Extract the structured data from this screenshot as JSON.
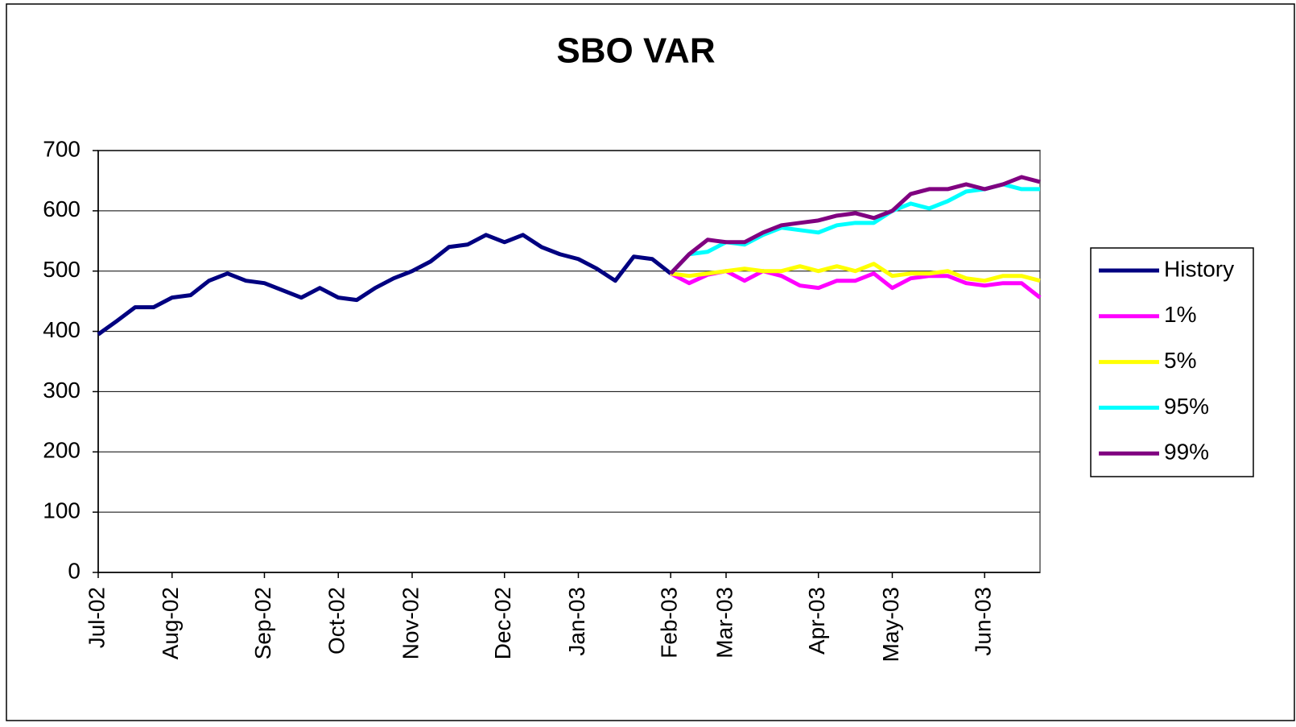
{
  "chart_data": {
    "type": "line",
    "title": "SBO VAR",
    "categories": [
      "Jul-02",
      null,
      null,
      null,
      "Aug-02",
      null,
      null,
      null,
      null,
      "Sep-02",
      null,
      null,
      null,
      "Oct-02",
      null,
      null,
      null,
      "Nov-02",
      null,
      null,
      null,
      null,
      "Dec-02",
      null,
      null,
      null,
      "Jan-03",
      null,
      null,
      null,
      null,
      "Feb-03",
      null,
      null,
      "Mar-03",
      null,
      null,
      null,
      null,
      "Apr-03",
      null,
      null,
      null,
      "May-03",
      null,
      null,
      null,
      null,
      "Jun-03",
      null,
      null,
      null
    ],
    "series": [
      {
        "name": "History",
        "color": "#000080",
        "values": [
          395,
          417,
          440,
          440,
          456,
          460,
          484,
          496,
          484,
          480,
          468,
          456,
          472,
          456,
          452,
          472,
          488,
          500,
          516,
          540,
          544,
          560,
          548,
          560,
          540,
          528,
          520,
          504,
          484,
          524,
          520,
          496,
          null,
          null,
          null,
          null,
          null,
          null,
          null,
          null,
          null,
          null,
          null,
          null,
          null,
          null,
          null,
          null,
          null,
          null,
          null,
          null
        ]
      },
      {
        "name": "1%",
        "color": "#ff00ff",
        "values": [
          null,
          null,
          null,
          null,
          null,
          null,
          null,
          null,
          null,
          null,
          null,
          null,
          null,
          null,
          null,
          null,
          null,
          null,
          null,
          null,
          null,
          null,
          null,
          null,
          null,
          null,
          null,
          null,
          null,
          null,
          null,
          496,
          480,
          494,
          500,
          484,
          500,
          492,
          476,
          472,
          484,
          484,
          496,
          472,
          488,
          492,
          492,
          480,
          476,
          480,
          480,
          456
        ]
      },
      {
        "name": "5%",
        "color": "#ffff00",
        "values": [
          null,
          null,
          null,
          null,
          null,
          null,
          null,
          null,
          null,
          null,
          null,
          null,
          null,
          null,
          null,
          null,
          null,
          null,
          null,
          null,
          null,
          null,
          null,
          null,
          null,
          null,
          null,
          null,
          null,
          null,
          null,
          496,
          492,
          496,
          500,
          504,
          500,
          500,
          508,
          500,
          508,
          500,
          512,
          492,
          496,
          496,
          500,
          488,
          484,
          492,
          492,
          484
        ]
      },
      {
        "name": "95%",
        "color": "#00ffff",
        "values": [
          null,
          null,
          null,
          null,
          null,
          null,
          null,
          null,
          null,
          null,
          null,
          null,
          null,
          null,
          null,
          null,
          null,
          null,
          null,
          null,
          null,
          null,
          null,
          null,
          null,
          null,
          null,
          null,
          null,
          null,
          null,
          496,
          528,
          532,
          548,
          544,
          560,
          572,
          568,
          564,
          576,
          580,
          580,
          600,
          612,
          604,
          616,
          632,
          636,
          644,
          636,
          636
        ]
      },
      {
        "name": "99%",
        "color": "#800080",
        "values": [
          null,
          null,
          null,
          null,
          null,
          null,
          null,
          null,
          null,
          null,
          null,
          null,
          null,
          null,
          null,
          null,
          null,
          null,
          null,
          null,
          null,
          null,
          null,
          null,
          null,
          null,
          null,
          null,
          null,
          null,
          null,
          496,
          528,
          552,
          548,
          548,
          564,
          576,
          580,
          584,
          592,
          596,
          588,
          600,
          628,
          636,
          636,
          644,
          636,
          644,
          656,
          648
        ]
      }
    ],
    "ylim": [
      0,
      700
    ],
    "yticks": [
      0,
      100,
      200,
      300,
      400,
      500,
      600,
      700
    ],
    "grid": true,
    "legend": "right"
  }
}
